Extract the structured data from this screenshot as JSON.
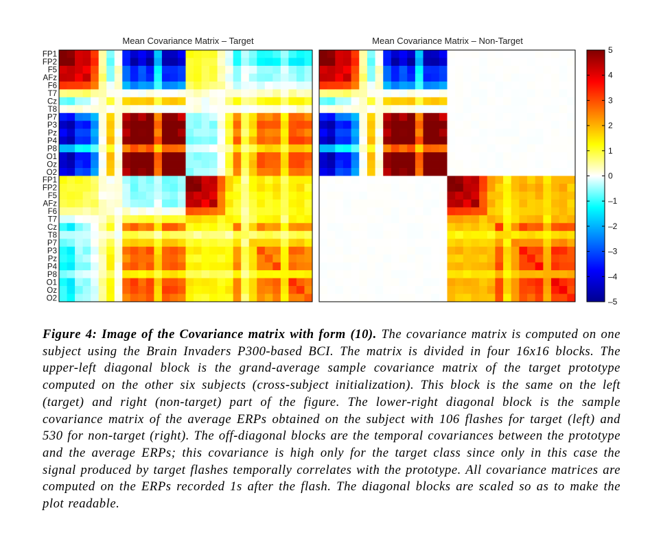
{
  "chart_data": [
    {
      "type": "heatmap",
      "title": "Mean Covariance Matrix – Target",
      "row_labels": [
        "FP1",
        "FP2",
        "F5",
        "AFz",
        "F6",
        "T7",
        "Cz",
        "T8",
        "P7",
        "P3",
        "Pz",
        "P4",
        "P8",
        "O1",
        "Oz",
        "O2",
        "FP1",
        "FP2",
        "F5",
        "AFz",
        "F6",
        "T7",
        "Cz",
        "T8",
        "P7",
        "P3",
        "Pz",
        "P4",
        "P8",
        "O1",
        "Oz",
        "O2"
      ],
      "blocks": {
        "upper_left": "prototype covariance: strong positive among frontal channels (FP1–AFz), negative between frontal and posterior channels, positive among posterior channels (P7–O2)",
        "lower_right": "average ERP covariance: strong positive among frontal channels, positive among posterior channels",
        "off_diagonal": "high temporal covariance between prototype and average ERPs"
      }
    },
    {
      "type": "heatmap",
      "title": "Mean Covariance Matrix – Non-Target",
      "row_labels": [
        "FP1",
        "FP2",
        "F5",
        "AFz",
        "F6",
        "T7",
        "Cz",
        "T8",
        "P7",
        "P3",
        "Pz",
        "P4",
        "P8",
        "O1",
        "Oz",
        "O2",
        "FP1",
        "FP2",
        "F5",
        "AFz",
        "F6",
        "T7",
        "Cz",
        "T8",
        "P7",
        "P3",
        "Pz",
        "P4",
        "P8",
        "O1",
        "Oz",
        "O2"
      ],
      "blocks": {
        "upper_left": "same as target prototype block",
        "lower_right": "average ERP covariance, positive with frontal peak",
        "off_diagonal": "near zero"
      }
    }
  ],
  "colorbar": {
    "min": -5,
    "max": 5,
    "ticks": [
      "5",
      "4",
      "3",
      "2",
      "1",
      "0",
      "–1",
      "–2",
      "–3",
      "–4",
      "–5"
    ],
    "colormap": "jet"
  },
  "caption": {
    "label": "Figure 4: Image of the Covariance matrix with form (10).",
    "text": "The covariance matrix is computed on one subject using the Brain Invaders P300-based BCI. The matrix is divided in four 16x16 blocks. The upper-left diagonal block is the grand-average sample covariance matrix of the target prototype computed on the other six subjects (cross-subject initialization). This block is the same on the left (target) and right (non-target) part of the figure. The lower-right diagonal block is the sample covariance matrix of the average ERPs obtained on the subject with 106 flashes for target (left) and 530 for non-target (right). The off-diagonal blocks are the temporal covariances between the prototype and the average ERPs; this covariance is high only for the target class since only in this case the signal produced by target flashes temporally correlates with the prototype. All covariance matrices are computed on the ERPs recorded 1s after the flash. The diagonal blocks are scaled so as to make the plot readable."
  }
}
